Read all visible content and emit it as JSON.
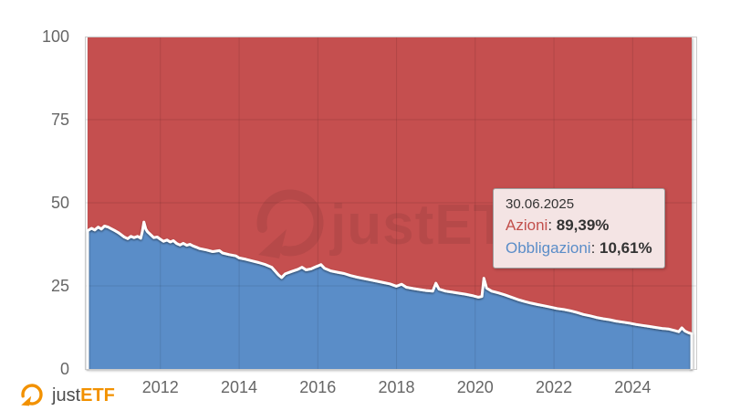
{
  "brand": {
    "just": "just",
    "etf": "ETF",
    "orange": "#f29100",
    "text_color": "#4d4d4d"
  },
  "watermark": {
    "text": "justETF"
  },
  "tooltip": {
    "date": "30.06.2025",
    "separator": ": ",
    "rows": [
      {
        "label": "Azioni",
        "value": "89,39%",
        "color": "#c2504c"
      },
      {
        "label": "Obbligazioni",
        "value": "10,61%",
        "color": "#5b8dc8"
      }
    ]
  },
  "chart_data": {
    "type": "area",
    "stacked": true,
    "stack_total": 100,
    "title": "",
    "xlabel": "",
    "ylabel": "",
    "ylim": [
      0,
      100
    ],
    "x_range": [
      2010.15,
      2025.5
    ],
    "grid": true,
    "legend_position": "none",
    "y_ticks": [
      {
        "label": "0",
        "v": 0
      },
      {
        "label": "25",
        "v": 25
      },
      {
        "label": "50",
        "v": 50
      },
      {
        "label": "75",
        "v": 75
      },
      {
        "label": "100",
        "v": 100
      }
    ],
    "x_ticks": [
      {
        "label": "2012",
        "v": 2012
      },
      {
        "label": "2014",
        "v": 2014
      },
      {
        "label": "2016",
        "v": 2016
      },
      {
        "label": "2018",
        "v": 2018
      },
      {
        "label": "2020",
        "v": 2020
      },
      {
        "label": "2022",
        "v": 2022
      },
      {
        "label": "2024",
        "v": 2024
      }
    ],
    "colors": {
      "azioni": "#c54f4f",
      "obbligazioni": "#5a8dc8",
      "boundary_line": "#ffffff",
      "grid_overlay": "rgba(0,0,0,0.10)",
      "frame": "#cbcbcb",
      "axis_label": "#666666"
    },
    "series": [
      {
        "name": "Azioni",
        "color": "#c54f4f",
        "note": "stacked on top: value = 100 - Obbligazioni",
        "last_value": 89.39
      },
      {
        "name": "Obbligazioni",
        "color": "#5a8dc8",
        "last_value": 10.61,
        "points": [
          [
            2010.15,
            41.6
          ],
          [
            2010.25,
            42.3
          ],
          [
            2010.33,
            41.8
          ],
          [
            2010.42,
            42.7
          ],
          [
            2010.5,
            42.1
          ],
          [
            2010.58,
            43.0
          ],
          [
            2010.67,
            42.7
          ],
          [
            2010.75,
            42.2
          ],
          [
            2010.83,
            41.7
          ],
          [
            2010.92,
            41.1
          ],
          [
            2011.0,
            40.4
          ],
          [
            2011.08,
            39.7
          ],
          [
            2011.17,
            39.2
          ],
          [
            2011.25,
            39.9
          ],
          [
            2011.33,
            39.5
          ],
          [
            2011.42,
            39.9
          ],
          [
            2011.5,
            39.3
          ],
          [
            2011.54,
            41.2
          ],
          [
            2011.58,
            44.2
          ],
          [
            2011.63,
            42.1
          ],
          [
            2011.67,
            41.3
          ],
          [
            2011.75,
            40.4
          ],
          [
            2011.83,
            39.5
          ],
          [
            2011.92,
            39.7
          ],
          [
            2012.0,
            39.0
          ],
          [
            2012.08,
            38.4
          ],
          [
            2012.17,
            38.8
          ],
          [
            2012.25,
            38.2
          ],
          [
            2012.33,
            38.6
          ],
          [
            2012.42,
            37.7
          ],
          [
            2012.5,
            37.3
          ],
          [
            2012.58,
            37.8
          ],
          [
            2012.67,
            37.2
          ],
          [
            2012.75,
            37.5
          ],
          [
            2012.83,
            37.0
          ],
          [
            2012.92,
            36.6
          ],
          [
            2013.0,
            36.2
          ],
          [
            2013.17,
            35.8
          ],
          [
            2013.33,
            35.3
          ],
          [
            2013.5,
            35.6
          ],
          [
            2013.58,
            34.9
          ],
          [
            2013.75,
            34.4
          ],
          [
            2013.92,
            34.0
          ],
          [
            2014.0,
            33.4
          ],
          [
            2014.17,
            33.0
          ],
          [
            2014.33,
            32.5
          ],
          [
            2014.5,
            32.0
          ],
          [
            2014.67,
            31.4
          ],
          [
            2014.83,
            30.6
          ],
          [
            2015.0,
            28.3
          ],
          [
            2015.08,
            27.5
          ],
          [
            2015.17,
            28.6
          ],
          [
            2015.33,
            29.3
          ],
          [
            2015.5,
            30.0
          ],
          [
            2015.6,
            30.6
          ],
          [
            2015.7,
            29.8
          ],
          [
            2015.83,
            30.1
          ],
          [
            2015.92,
            30.6
          ],
          [
            2016.0,
            31.0
          ],
          [
            2016.08,
            31.4
          ],
          [
            2016.17,
            30.3
          ],
          [
            2016.33,
            29.5
          ],
          [
            2016.5,
            29.1
          ],
          [
            2016.67,
            28.7
          ],
          [
            2016.83,
            28.1
          ],
          [
            2017.0,
            27.6
          ],
          [
            2017.17,
            27.2
          ],
          [
            2017.33,
            26.8
          ],
          [
            2017.5,
            26.4
          ],
          [
            2017.67,
            26.0
          ],
          [
            2017.83,
            25.6
          ],
          [
            2018.0,
            24.9
          ],
          [
            2018.13,
            25.5
          ],
          [
            2018.25,
            24.6
          ],
          [
            2018.42,
            24.2
          ],
          [
            2018.58,
            23.9
          ],
          [
            2018.75,
            23.6
          ],
          [
            2018.92,
            23.4
          ],
          [
            2019.0,
            25.8
          ],
          [
            2019.08,
            24.0
          ],
          [
            2019.25,
            23.4
          ],
          [
            2019.42,
            23.1
          ],
          [
            2019.58,
            22.8
          ],
          [
            2019.75,
            22.5
          ],
          [
            2019.92,
            22.1
          ],
          [
            2020.08,
            21.6
          ],
          [
            2020.17,
            21.8
          ],
          [
            2020.22,
            27.3
          ],
          [
            2020.29,
            24.3
          ],
          [
            2020.42,
            23.4
          ],
          [
            2020.58,
            22.9
          ],
          [
            2020.75,
            22.3
          ],
          [
            2020.92,
            21.6
          ],
          [
            2021.08,
            20.9
          ],
          [
            2021.25,
            20.3
          ],
          [
            2021.42,
            19.8
          ],
          [
            2021.58,
            19.4
          ],
          [
            2021.75,
            19.0
          ],
          [
            2021.92,
            18.6
          ],
          [
            2022.08,
            18.2
          ],
          [
            2022.25,
            17.9
          ],
          [
            2022.42,
            17.5
          ],
          [
            2022.58,
            17.0
          ],
          [
            2022.75,
            16.4
          ],
          [
            2022.92,
            16.0
          ],
          [
            2023.08,
            15.5
          ],
          [
            2023.25,
            15.1
          ],
          [
            2023.42,
            14.8
          ],
          [
            2023.58,
            14.4
          ],
          [
            2023.75,
            14.1
          ],
          [
            2023.92,
            13.8
          ],
          [
            2024.08,
            13.4
          ],
          [
            2024.25,
            13.1
          ],
          [
            2024.42,
            12.8
          ],
          [
            2024.58,
            12.5
          ],
          [
            2024.75,
            12.2
          ],
          [
            2024.92,
            12.0
          ],
          [
            2025.08,
            11.5
          ],
          [
            2025.17,
            11.2
          ],
          [
            2025.25,
            12.4
          ],
          [
            2025.33,
            11.4
          ],
          [
            2025.42,
            10.9
          ],
          [
            2025.5,
            10.61
          ]
        ]
      }
    ]
  }
}
